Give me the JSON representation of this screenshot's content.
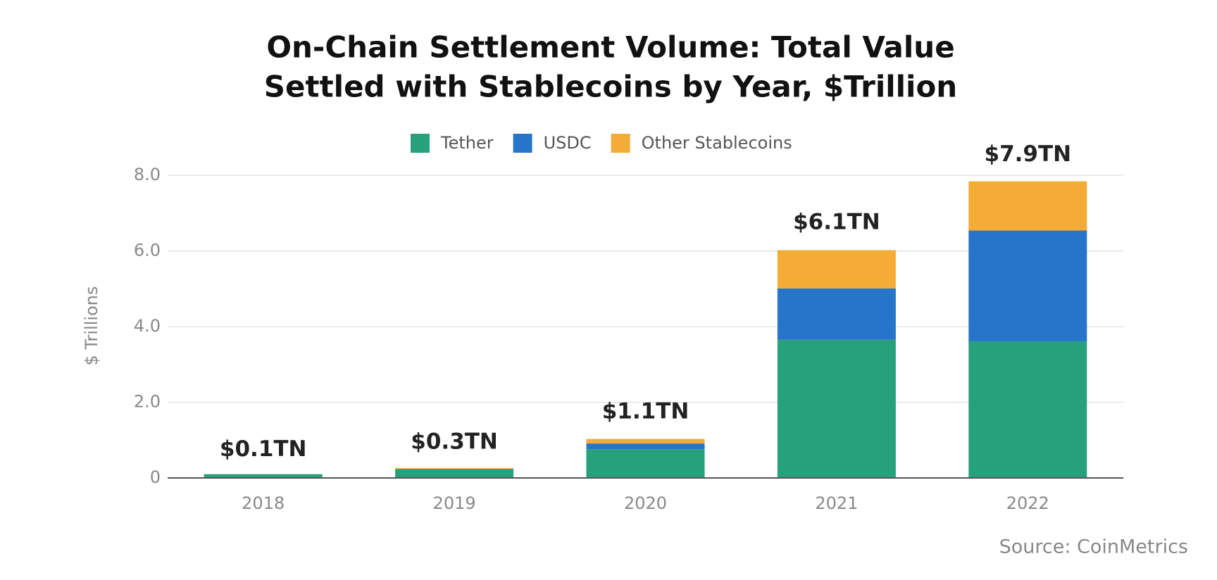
{
  "chart_data": {
    "type": "stacked-bar",
    "title": [
      "On-Chain Settlement Volume: Total Value",
      "Settled with Stablecoins by Year, $Trillion"
    ],
    "y_label": "$ Trillions",
    "source": "Source: CoinMetrics",
    "categories": [
      "2018",
      "2019",
      "2020",
      "2021",
      "2022"
    ],
    "series": [
      {
        "name": "Tether",
        "color": "#26a17b",
        "values": [
          0.1,
          0.23,
          0.76,
          3.65,
          3.61
        ]
      },
      {
        "name": "USDC",
        "color": "#2775ca",
        "values": [
          0,
          0.01,
          0.15,
          1.36,
          2.93
        ]
      },
      {
        "name": "Other Stablecoins",
        "color": "#f5ac37",
        "values": [
          0,
          0.02,
          0.12,
          1.01,
          1.3
        ]
      }
    ],
    "totals": {
      "values": [
        0.1,
        0.3,
        1.1,
        6.1,
        7.9
      ],
      "value_labels": [
        "$0.1TN",
        "$0.3TN",
        "$1.1TN",
        "$6.1TN",
        "$7.9TN"
      ]
    },
    "ylim": [
      0,
      8
    ],
    "yticks": [
      0,
      {
        "value": 2,
        "label": "2.0"
      },
      {
        "value": 4,
        "label": "4.0"
      },
      {
        "value": 6,
        "label": "6.0"
      },
      {
        "value": 8,
        "label": "8.0"
      }
    ],
    "grid": true
  }
}
